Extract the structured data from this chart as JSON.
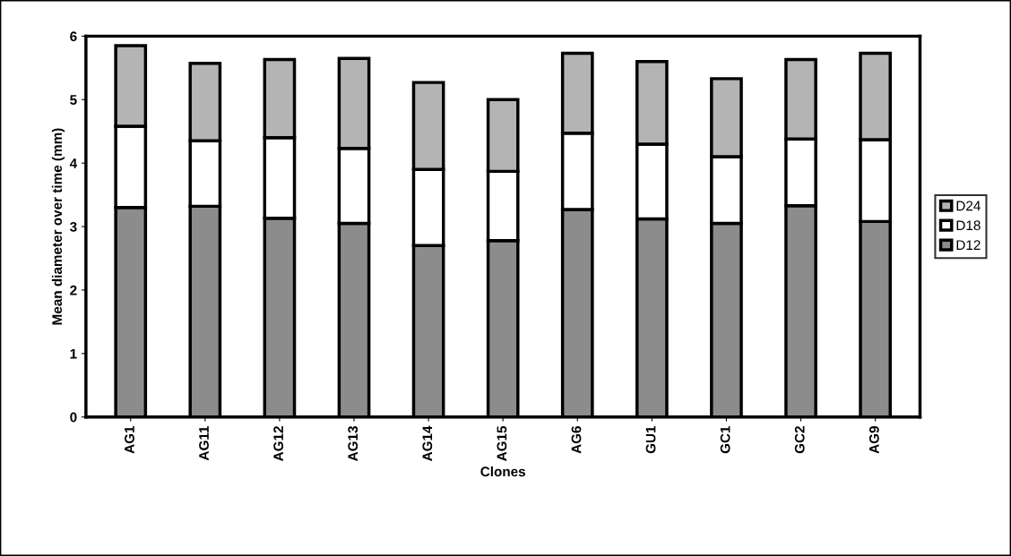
{
  "chart_data": {
    "type": "bar",
    "stacked": true,
    "xlabel": "Clones",
    "ylabel": "Mean diameter over time (mm)",
    "categories": [
      "AG1",
      "AG11",
      "AG12",
      "AG13",
      "AG14",
      "AG15",
      "AG6",
      "GU1",
      "GC1",
      "GC2",
      "AG9"
    ],
    "series": [
      {
        "name": "D12",
        "color": "#8c8c8c",
        "values": [
          3.3,
          3.32,
          3.13,
          3.05,
          2.7,
          2.78,
          3.27,
          3.12,
          3.05,
          3.33,
          3.08
        ]
      },
      {
        "name": "D18",
        "color": "#ffffff",
        "values": [
          1.28,
          1.03,
          1.27,
          1.18,
          1.2,
          1.09,
          1.2,
          1.18,
          1.05,
          1.05,
          1.29
        ]
      },
      {
        "name": "D24",
        "color": "#b4b4b4",
        "values": [
          1.27,
          1.22,
          1.23,
          1.42,
          1.37,
          1.13,
          1.26,
          1.3,
          1.23,
          1.25,
          1.36
        ]
      }
    ],
    "ylim": [
      0,
      6
    ],
    "yticks": [
      0,
      1,
      2,
      3,
      4,
      5,
      6
    ],
    "grid": false,
    "legend": "right"
  }
}
